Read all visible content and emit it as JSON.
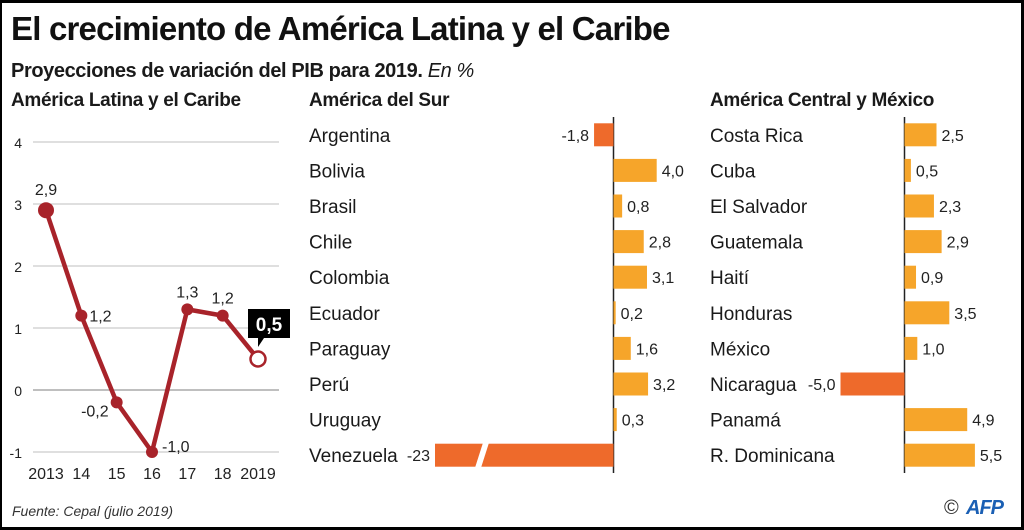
{
  "header": {
    "title": "El crecimiento de América Latina y el Caribe",
    "subtitle": "Proyecciones de variación del PIB para 2019.",
    "subtitle_unit": "En %"
  },
  "footer": {
    "source": "Fuente: Cepal (julio 2019)",
    "copyright_symbol": "©",
    "brand": "AFP"
  },
  "colors": {
    "line": "#a8232a",
    "positive_bar": "#f6a52a",
    "negative_bar": "#ee6a2b",
    "gridline": "#cccccc",
    "axis": "#222222",
    "brand": "#1a5fb4"
  },
  "chart_data": [
    {
      "type": "line",
      "title": "América Latina y el Caribe",
      "x": [
        "2013",
        "14",
        "15",
        "16",
        "17",
        "18",
        "2019"
      ],
      "series": [
        {
          "name": "Variación del PIB (%)",
          "values": [
            2.9,
            1.2,
            -0.2,
            -1.0,
            1.3,
            1.2,
            0.5
          ],
          "labels": [
            "2,9",
            "1,2",
            "-0,2",
            "-1,0",
            "1,3",
            "1,2",
            "0,5"
          ]
        }
      ],
      "highlight": {
        "index": 6,
        "label": "0,5",
        "style": "callout-open-marker"
      },
      "yticks": [
        4,
        3,
        2,
        1,
        0,
        -1
      ],
      "ytick_labels": [
        "4",
        "3",
        "2",
        "1",
        "0",
        "-1"
      ],
      "ylim": [
        -1,
        4
      ],
      "grid": true,
      "xlabel": "",
      "ylabel": ""
    },
    {
      "type": "bar",
      "orientation": "horizontal",
      "title": "América del Sur",
      "categories": [
        "Argentina",
        "Bolivia",
        "Brasil",
        "Chile",
        "Colombia",
        "Ecuador",
        "Paraguay",
        "Perú",
        "Uruguay",
        "Venezuela"
      ],
      "values": [
        -1.8,
        4.0,
        0.8,
        2.8,
        3.1,
        0.2,
        1.6,
        3.2,
        0.3,
        -23
      ],
      "labels": [
        "-1,8",
        "4,0",
        "0,8",
        "2,8",
        "3,1",
        "0,2",
        "1,6",
        "3,2",
        "0,3",
        "-23"
      ],
      "broken_axis_bars": [
        "Venezuela"
      ]
    },
    {
      "type": "bar",
      "orientation": "horizontal",
      "title": "América Central y México",
      "categories": [
        "Costa Rica",
        "Cuba",
        "El Salvador",
        "Guatemala",
        "Haití",
        "Honduras",
        "México",
        "Nicaragua",
        "Panamá",
        "R. Dominicana"
      ],
      "values": [
        2.5,
        0.5,
        2.3,
        2.9,
        0.9,
        3.5,
        1.0,
        -5.0,
        4.9,
        5.5
      ],
      "labels": [
        "2,5",
        "0,5",
        "2,3",
        "2,9",
        "0,9",
        "3,5",
        "1,0",
        "-5,0",
        "4,9",
        "5,5"
      ]
    }
  ]
}
